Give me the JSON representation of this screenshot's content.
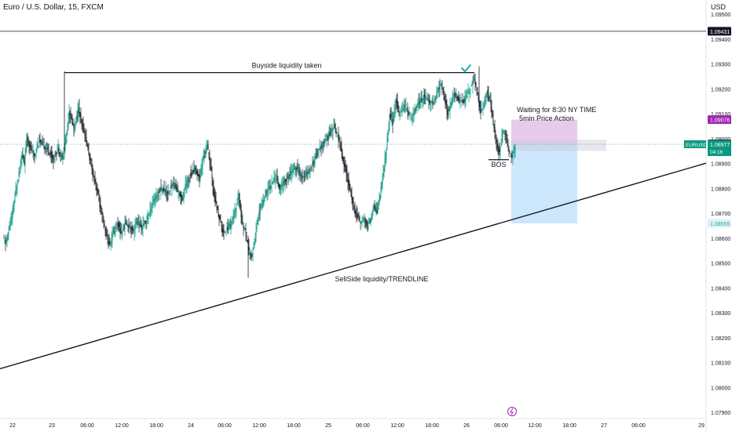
{
  "header": {
    "title": "Euro / U.S. Dollar, 15, FXCM",
    "currency": "USD"
  },
  "chart_data": {
    "type": "candlestick",
    "symbol": "EURUSD",
    "timeframe": "15",
    "ylim": [
      1.079,
      1.095
    ],
    "y_ticks": [
      "1.09500",
      "1.09400",
      "1.09300",
      "1.09200",
      "1.09100",
      "1.09000",
      "1.08900",
      "1.08800",
      "1.08700",
      "1.08600",
      "1.08500",
      "1.08400",
      "1.08300",
      "1.08200",
      "1.08100",
      "1.08000",
      "1.07900"
    ],
    "x_ticks": [
      "22",
      "23",
      "06:00",
      "12:00",
      "18:00",
      "24",
      "06:00",
      "12:00",
      "18:00",
      "25",
      "06:00",
      "12:00",
      "18:00",
      "26",
      "06:00",
      "12:00",
      "18:00",
      "27",
      "06:00",
      "29"
    ],
    "price_path": [
      [
        0,
        1.086
      ],
      [
        3,
        1.0858
      ],
      [
        8,
        1.0864
      ],
      [
        12,
        1.087
      ],
      [
        16,
        1.0879
      ],
      [
        20,
        1.0886
      ],
      [
        24,
        1.0893
      ],
      [
        27,
        1.089
      ],
      [
        30,
        1.0901
      ],
      [
        35,
        1.0896
      ],
      [
        40,
        1.0893
      ],
      [
        46,
        1.0899
      ],
      [
        52,
        1.0897
      ],
      [
        58,
        1.0895
      ],
      [
        64,
        1.0892
      ],
      [
        70,
        1.0896
      ],
      [
        76,
        1.0892
      ],
      [
        80,
        1.09
      ],
      [
        84,
        1.0911
      ],
      [
        90,
        1.0904
      ],
      [
        96,
        1.0912
      ],
      [
        100,
        1.0906
      ],
      [
        106,
        1.0899
      ],
      [
        110,
        1.0892
      ],
      [
        114,
        1.0886
      ],
      [
        120,
        1.0879
      ],
      [
        124,
        1.0871
      ],
      [
        128,
        1.0866
      ],
      [
        132,
        1.086
      ],
      [
        136,
        1.0857
      ],
      [
        140,
        1.0862
      ],
      [
        146,
        1.0866
      ],
      [
        150,
        1.0862
      ],
      [
        156,
        1.0866
      ],
      [
        160,
        1.0865
      ],
      [
        166,
        1.0863
      ],
      [
        170,
        1.0867
      ],
      [
        176,
        1.0864
      ],
      [
        180,
        1.0866
      ],
      [
        186,
        1.087
      ],
      [
        190,
        1.0874
      ],
      [
        196,
        1.0877
      ],
      [
        200,
        1.088
      ],
      [
        206,
        1.0879
      ],
      [
        210,
        1.0878
      ],
      [
        216,
        1.0882
      ],
      [
        222,
        1.0879
      ],
      [
        228,
        1.0876
      ],
      [
        232,
        1.0881
      ],
      [
        238,
        1.0885
      ],
      [
        244,
        1.0888
      ],
      [
        250,
        1.0884
      ],
      [
        256,
        1.0894
      ],
      [
        260,
        1.0897
      ],
      [
        264,
        1.0889
      ],
      [
        268,
        1.0878
      ],
      [
        272,
        1.0872
      ],
      [
        276,
        1.0867
      ],
      [
        280,
        1.0862
      ],
      [
        286,
        1.0864
      ],
      [
        290,
        1.0866
      ],
      [
        296,
        1.0871
      ],
      [
        300,
        1.0878
      ],
      [
        304,
        1.0866
      ],
      [
        308,
        1.0863
      ],
      [
        312,
        1.0856
      ],
      [
        316,
        1.0852
      ],
      [
        320,
        1.0858
      ],
      [
        324,
        1.0868
      ],
      [
        330,
        1.0874
      ],
      [
        336,
        1.0879
      ],
      [
        342,
        1.0882
      ],
      [
        348,
        1.0885
      ],
      [
        352,
        1.088
      ],
      [
        356,
        1.0882
      ],
      [
        362,
        1.0884
      ],
      [
        368,
        1.0887
      ],
      [
        374,
        1.0888
      ],
      [
        380,
        1.0884
      ],
      [
        386,
        1.0886
      ],
      [
        392,
        1.0888
      ],
      [
        398,
        1.0893
      ],
      [
        404,
        1.0896
      ],
      [
        410,
        1.0899
      ],
      [
        416,
        1.0902
      ],
      [
        422,
        1.0905
      ],
      [
        428,
        1.0899
      ],
      [
        432,
        1.0892
      ],
      [
        436,
        1.0887
      ],
      [
        440,
        1.0882
      ],
      [
        444,
        1.0876
      ],
      [
        448,
        1.087
      ],
      [
        452,
        1.0868
      ],
      [
        456,
        1.0866
      ],
      [
        460,
        1.0868
      ],
      [
        464,
        1.0865
      ],
      [
        468,
        1.0867
      ],
      [
        472,
        1.0873
      ],
      [
        476,
        1.087
      ],
      [
        480,
        1.0878
      ],
      [
        484,
        1.0886
      ],
      [
        488,
        1.0896
      ],
      [
        492,
        1.091
      ],
      [
        496,
        1.0906
      ],
      [
        500,
        1.0916
      ],
      [
        504,
        1.091
      ],
      [
        508,
        1.0911
      ],
      [
        512,
        1.0914
      ],
      [
        516,
        1.091
      ],
      [
        520,
        1.0908
      ],
      [
        524,
        1.0911
      ],
      [
        530,
        1.0915
      ],
      [
        536,
        1.0917
      ],
      [
        542,
        1.0915
      ],
      [
        548,
        1.0914
      ],
      [
        554,
        1.092
      ],
      [
        558,
        1.0922
      ],
      [
        562,
        1.0916
      ],
      [
        566,
        1.091
      ],
      [
        570,
        1.0914
      ],
      [
        574,
        1.0918
      ],
      [
        578,
        1.0916
      ],
      [
        582,
        1.0914
      ],
      [
        586,
        1.0915
      ],
      [
        590,
        1.0917
      ],
      [
        596,
        1.0921
      ],
      [
        600,
        1.0924
      ],
      [
        604,
        1.0917
      ],
      [
        608,
        1.0911
      ],
      [
        612,
        1.0913
      ],
      [
        616,
        1.0919
      ],
      [
        620,
        1.0915
      ],
      [
        624,
        1.0906
      ],
      [
        628,
        1.0898
      ],
      [
        632,
        1.0894
      ],
      [
        636,
        1.0903
      ],
      [
        640,
        1.0901
      ],
      [
        644,
        1.0895
      ],
      [
        648,
        1.0892
      ],
      [
        652,
        1.0897
      ]
    ],
    "horizontal_levels": [
      {
        "label": "1.09431",
        "price": 1.09431,
        "color": "#131722"
      },
      {
        "label": "1.09076",
        "price": 1.09076,
        "color": "#9c27b0"
      },
      {
        "label": "1.08978",
        "price": 1.08978,
        "color": "#131722"
      },
      {
        "label": "1.08659",
        "price": 1.08659,
        "color": "#26a6b0"
      }
    ],
    "last_price": {
      "symbol": "EURUSD",
      "price": "1.08977",
      "countdown": "04:16",
      "color": "#089981"
    },
    "annotations": [
      {
        "text": "Buyside liquidity taken"
      },
      {
        "text": "Waiting for 8:30 NY TIME"
      },
      {
        "text": "5min Price Action"
      },
      {
        "text": "BOS"
      },
      {
        "text": "SellSide liquidity/TRENDLINE"
      }
    ],
    "colors": {
      "up": "#089981",
      "down": "#131722",
      "profit_zone": "#bbdefb",
      "stop_zone": "#e1bee7",
      "check": "#26a6b0"
    }
  }
}
